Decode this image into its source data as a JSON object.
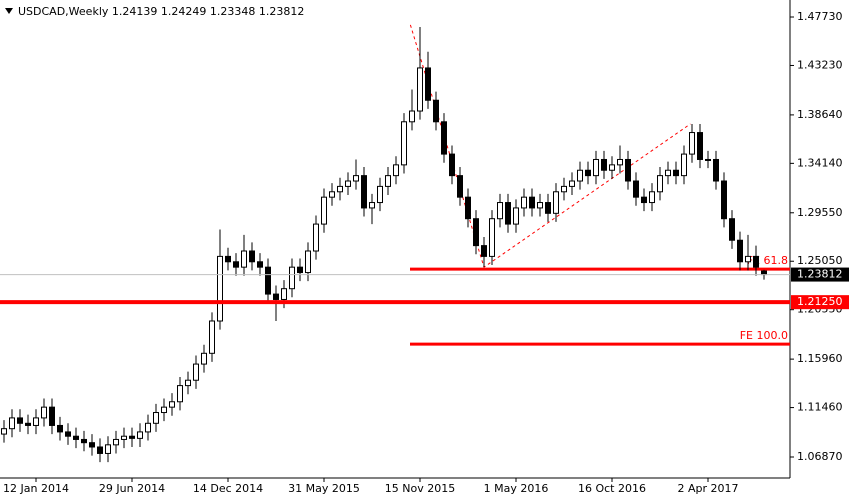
{
  "chart_data": {
    "type": "candlestick",
    "title": "USDCAD,Weekly  1.24139 1.24249 1.23348 1.23812",
    "open": [
      1.09,
      1.095,
      1.105,
      1.1,
      1.098,
      1.105,
      1.115,
      1.098,
      1.092,
      1.088,
      1.085,
      1.082,
      1.078,
      1.072,
      1.08,
      1.085,
      1.088,
      1.086,
      1.092,
      1.1,
      1.11,
      1.115,
      1.12,
      1.135,
      1.14,
      1.155,
      1.165,
      1.195,
      1.255,
      1.25,
      1.245,
      1.26,
      1.25,
      1.245,
      1.22,
      1.215,
      1.225,
      1.245,
      1.24,
      1.26,
      1.285,
      1.31,
      1.315,
      1.32,
      1.325,
      1.33,
      1.3,
      1.305,
      1.32,
      1.33,
      1.34,
      1.38,
      1.39,
      1.43,
      1.4,
      1.38,
      1.35,
      1.33,
      1.31,
      1.29,
      1.265,
      1.255,
      1.29,
      1.305,
      1.285,
      1.3,
      1.31,
      1.3,
      1.305,
      1.295,
      1.315,
      1.32,
      1.325,
      1.335,
      1.33,
      1.345,
      1.335,
      1.34,
      1.345,
      1.325,
      1.31,
      1.305,
      1.315,
      1.33,
      1.335,
      1.33,
      1.35,
      1.37,
      1.345,
      1.345,
      1.325,
      1.29,
      1.27,
      1.25,
      1.255,
      1.24139
    ],
    "high": [
      1.103,
      1.113,
      1.113,
      1.108,
      1.113,
      1.123,
      1.123,
      1.106,
      1.1,
      1.096,
      1.093,
      1.09,
      1.086,
      1.088,
      1.093,
      1.096,
      1.096,
      1.1,
      1.108,
      1.118,
      1.123,
      1.128,
      1.143,
      1.148,
      1.163,
      1.173,
      1.203,
      1.28,
      1.263,
      1.258,
      1.275,
      1.268,
      1.258,
      1.253,
      1.228,
      1.233,
      1.253,
      1.253,
      1.268,
      1.293,
      1.318,
      1.323,
      1.328,
      1.333,
      1.345,
      1.338,
      1.313,
      1.328,
      1.338,
      1.348,
      1.388,
      1.41,
      1.468,
      1.445,
      1.408,
      1.388,
      1.358,
      1.338,
      1.318,
      1.298,
      1.273,
      1.298,
      1.313,
      1.313,
      1.308,
      1.318,
      1.318,
      1.313,
      1.313,
      1.323,
      1.328,
      1.333,
      1.343,
      1.343,
      1.353,
      1.353,
      1.348,
      1.358,
      1.353,
      1.333,
      1.318,
      1.323,
      1.338,
      1.343,
      1.343,
      1.358,
      1.378,
      1.378,
      1.353,
      1.353,
      1.333,
      1.298,
      1.278,
      1.275,
      1.265,
      1.24249
    ],
    "low": [
      1.082,
      1.087,
      1.092,
      1.09,
      1.09,
      1.097,
      1.09,
      1.084,
      1.08,
      1.077,
      1.074,
      1.07,
      1.064,
      1.064,
      1.072,
      1.077,
      1.078,
      1.078,
      1.084,
      1.092,
      1.102,
      1.107,
      1.112,
      1.127,
      1.132,
      1.147,
      1.157,
      1.187,
      1.242,
      1.237,
      1.237,
      1.242,
      1.237,
      1.212,
      1.195,
      1.207,
      1.217,
      1.232,
      1.232,
      1.252,
      1.277,
      1.302,
      1.307,
      1.312,
      1.317,
      1.292,
      1.285,
      1.297,
      1.312,
      1.322,
      1.332,
      1.372,
      1.382,
      1.392,
      1.372,
      1.342,
      1.322,
      1.302,
      1.282,
      1.257,
      1.245,
      1.247,
      1.282,
      1.277,
      1.277,
      1.292,
      1.292,
      1.292,
      1.287,
      1.287,
      1.307,
      1.312,
      1.317,
      1.322,
      1.322,
      1.327,
      1.327,
      1.332,
      1.317,
      1.302,
      1.297,
      1.297,
      1.307,
      1.322,
      1.322,
      1.322,
      1.342,
      1.337,
      1.337,
      1.317,
      1.282,
      1.262,
      1.242,
      1.242,
      1.237,
      1.23348
    ],
    "close": [
      1.095,
      1.105,
      1.1,
      1.098,
      1.105,
      1.115,
      1.098,
      1.092,
      1.088,
      1.085,
      1.082,
      1.078,
      1.072,
      1.08,
      1.085,
      1.088,
      1.086,
      1.092,
      1.1,
      1.11,
      1.115,
      1.12,
      1.135,
      1.14,
      1.155,
      1.165,
      1.195,
      1.255,
      1.25,
      1.245,
      1.26,
      1.25,
      1.245,
      1.22,
      1.215,
      1.225,
      1.245,
      1.24,
      1.26,
      1.285,
      1.31,
      1.315,
      1.32,
      1.325,
      1.33,
      1.3,
      1.305,
      1.32,
      1.33,
      1.34,
      1.38,
      1.39,
      1.43,
      1.4,
      1.38,
      1.35,
      1.33,
      1.31,
      1.29,
      1.265,
      1.255,
      1.29,
      1.305,
      1.285,
      1.3,
      1.31,
      1.3,
      1.305,
      1.295,
      1.315,
      1.32,
      1.325,
      1.335,
      1.33,
      1.345,
      1.335,
      1.34,
      1.345,
      1.325,
      1.31,
      1.305,
      1.315,
      1.33,
      1.335,
      1.33,
      1.35,
      1.37,
      1.345,
      1.345,
      1.325,
      1.29,
      1.27,
      1.25,
      1.255,
      1.245,
      1.23812
    ],
    "xticks": [
      {
        "value": 4,
        "label": "12 Jan 2014"
      },
      {
        "value": 16,
        "label": "29 Jun 2014"
      },
      {
        "value": 28,
        "label": "14 Dec 2014"
      },
      {
        "value": 40,
        "label": "31 May 2015"
      },
      {
        "value": 52,
        "label": "15 Nov 2015"
      },
      {
        "value": 64,
        "label": "1 May 2016"
      },
      {
        "value": 76,
        "label": "16 Oct 2016"
      },
      {
        "value": 88,
        "label": "2 Apr 2017"
      }
    ],
    "ylim": [
      1.0492,
      1.4931
    ],
    "yticks": [
      {
        "value": 1.4773,
        "label": "1.47730"
      },
      {
        "value": 1.4323,
        "label": "1.43230"
      },
      {
        "value": 1.3864,
        "label": "1.38640"
      },
      {
        "value": 1.3414,
        "label": "1.34140"
      },
      {
        "value": 1.2955,
        "label": "1.29550"
      },
      {
        "value": 1.2505,
        "label": "1.25050"
      },
      {
        "value": 1.2055,
        "label": "1.20550"
      },
      {
        "value": 1.1596,
        "label": "1.15960"
      },
      {
        "value": 1.1146,
        "label": "1.11460"
      },
      {
        "value": 1.0687,
        "label": "1.06870"
      }
    ],
    "price_lines": [
      {
        "value": 1.23812,
        "label": "1.23812",
        "color": "#c0c0c0",
        "box": "#000000"
      },
      {
        "value": 1.2125,
        "label": "1.21250",
        "color": "#ff0000",
        "box": "#ff0000"
      }
    ],
    "fe_lines": [
      {
        "value": 1.2432,
        "name": "FE 61.8"
      },
      {
        "value": 1.1735,
        "name": "FE 100.0"
      }
    ],
    "fe_color": "#ff0000",
    "trendline": {
      "x": [
        50.8,
        60,
        85.8
      ],
      "y": [
        1.47,
        1.245,
        1.378
      ]
    }
  }
}
